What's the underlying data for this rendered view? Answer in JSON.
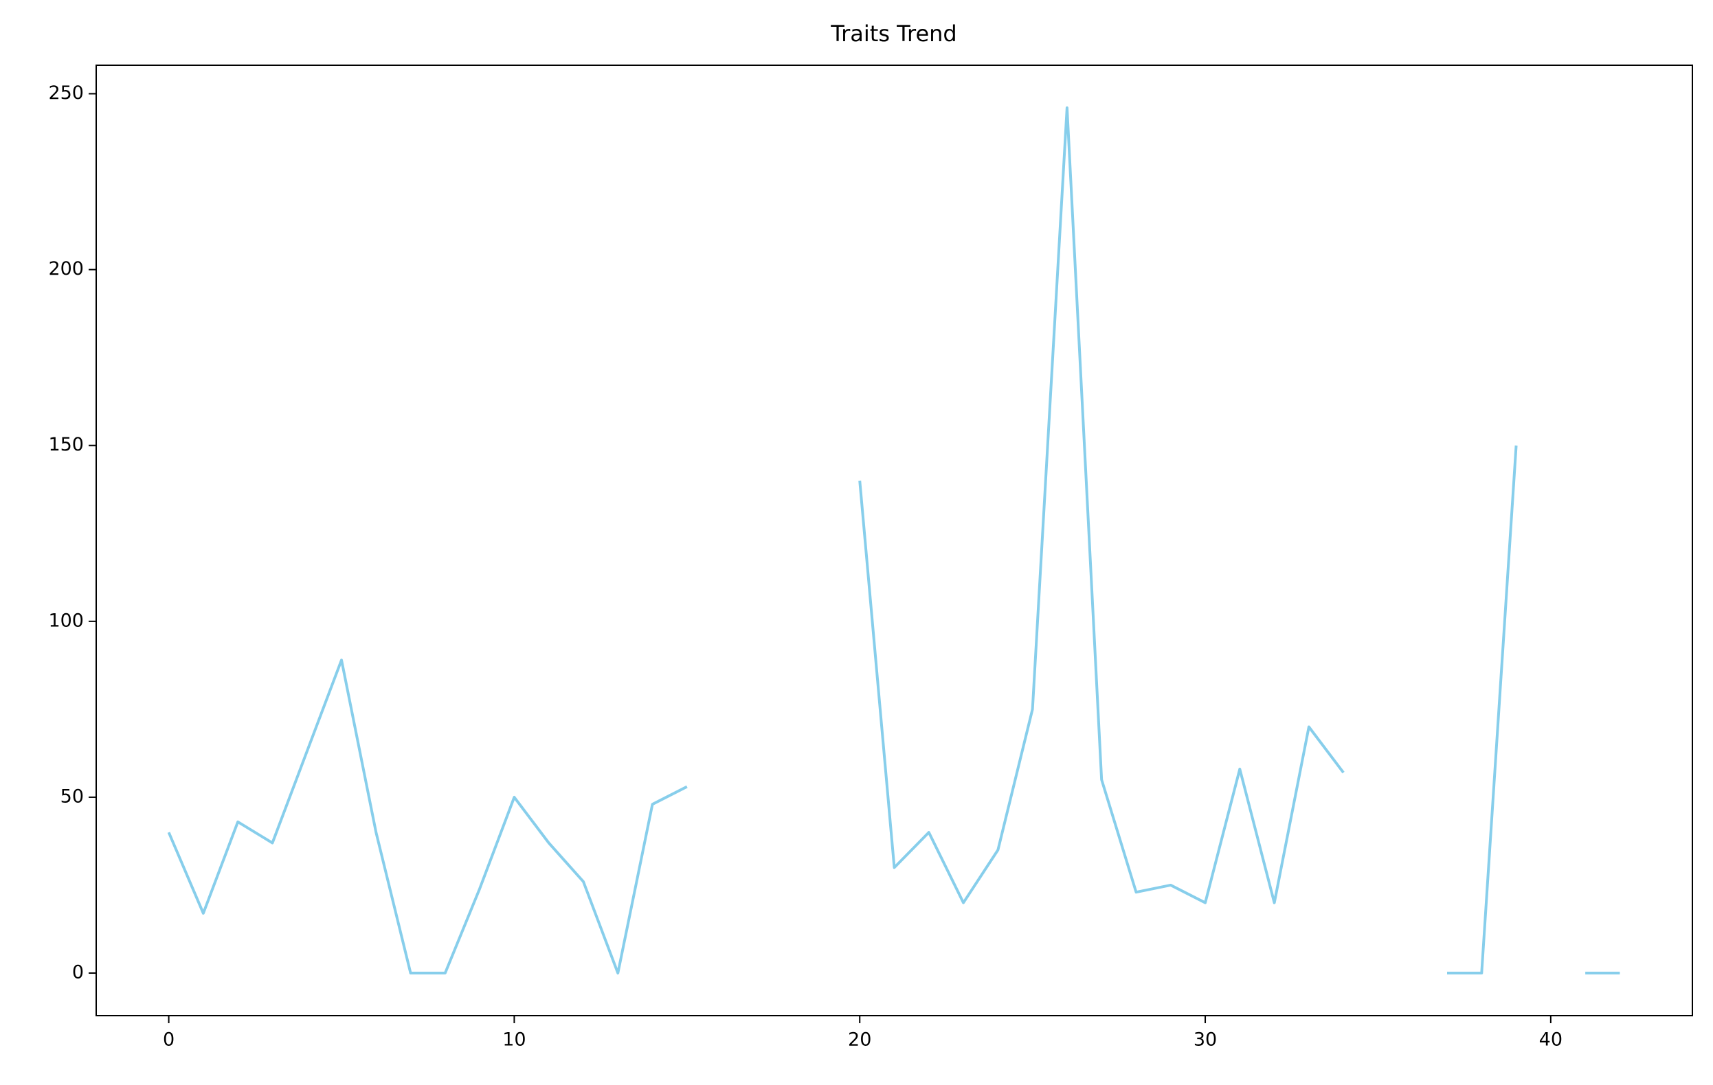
{
  "chart_data": {
    "type": "line",
    "title": "Traits Trend",
    "x": [
      0,
      1,
      2,
      3,
      4,
      5,
      6,
      7,
      8,
      9,
      10,
      11,
      12,
      13,
      14,
      15,
      16,
      17,
      18,
      19,
      20,
      21,
      22,
      23,
      24,
      25,
      26,
      27,
      28,
      29,
      30,
      31,
      32,
      33,
      34,
      35,
      36,
      37,
      38,
      39,
      40,
      41,
      42
    ],
    "series": [
      {
        "name": "Traits",
        "color": "#87ceeb",
        "values": [
          40,
          17,
          43,
          37,
          63,
          89,
          40,
          0,
          0,
          24,
          50,
          37,
          26,
          0,
          48,
          53,
          null,
          null,
          null,
          null,
          140,
          30,
          40,
          20,
          35,
          75,
          246,
          55,
          23,
          25,
          20,
          58,
          20,
          70,
          57,
          null,
          null,
          0,
          0,
          150,
          null,
          0,
          0
        ]
      }
    ],
    "xlim": [
      -2.1,
      44.1
    ],
    "ylim": [
      -12.1,
      258.1
    ],
    "xticks": [
      0,
      10,
      20,
      30,
      40
    ],
    "yticks": [
      0,
      50,
      100,
      150,
      200,
      250
    ],
    "grid": false
  }
}
